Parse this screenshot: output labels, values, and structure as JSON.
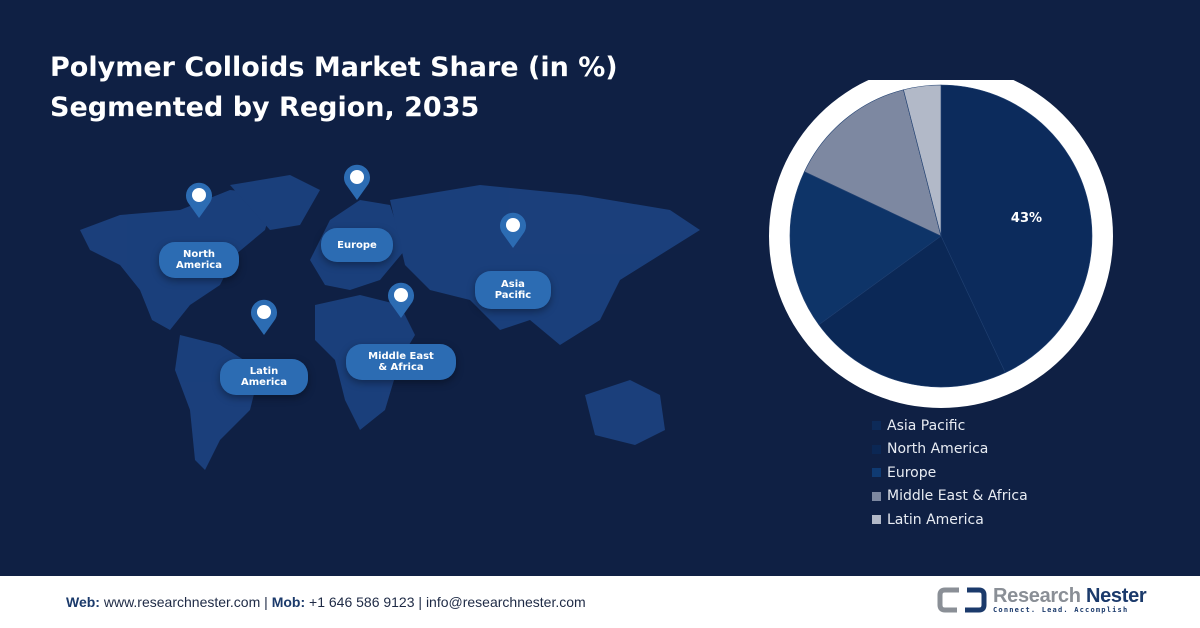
{
  "title": {
    "line1": "Polymer Colloids Market Share (in %)",
    "line2": "Segmented by Region, 2035"
  },
  "map_labels": [
    {
      "id": "north-america",
      "text1": "North",
      "text2": "America"
    },
    {
      "id": "europe",
      "text1": "Europe",
      "text2": ""
    },
    {
      "id": "asia-pacific",
      "text1": "Asia",
      "text2": "Pacific"
    },
    {
      "id": "middle-east-africa",
      "text1": "Middle East",
      "text2": "& Africa"
    },
    {
      "id": "latin-america",
      "text1": "Latin",
      "text2": "America"
    }
  ],
  "chart_data": {
    "type": "pie",
    "title": "Polymer Colloids Market Share (in %) Segmented by Region, 2035",
    "start": "top, clockwise",
    "slices": [
      {
        "name": "Asia Pacific",
        "value": 43,
        "label": "43%",
        "color": "#0c2b5c"
      },
      {
        "name": "North America",
        "value": 22,
        "label": "",
        "color": "#0b2856"
      },
      {
        "name": "Europe",
        "value": 17,
        "label": "",
        "color": "#0e3468"
      },
      {
        "name": "Middle East & Africa",
        "value": 14,
        "label": "",
        "color": "#7d88a1"
      },
      {
        "name": "Latin America",
        "value": 4,
        "label": "",
        "color": "#b2b9c8"
      }
    ],
    "legend_placement": "bottom"
  },
  "footer": {
    "web_label": "Web:",
    "web": "www.researchnester.com",
    "mob_label": "Mob:",
    "mob": "+1 646 586 9123",
    "email": "info@researchnester.com",
    "logo": {
      "name1": "Research",
      "name2": "Nester",
      "tagline": "Connect. Lead. Accomplish"
    }
  },
  "colors": {
    "background": "#0f2044",
    "map": "#1d4585",
    "pin": "#2c6cb3"
  }
}
